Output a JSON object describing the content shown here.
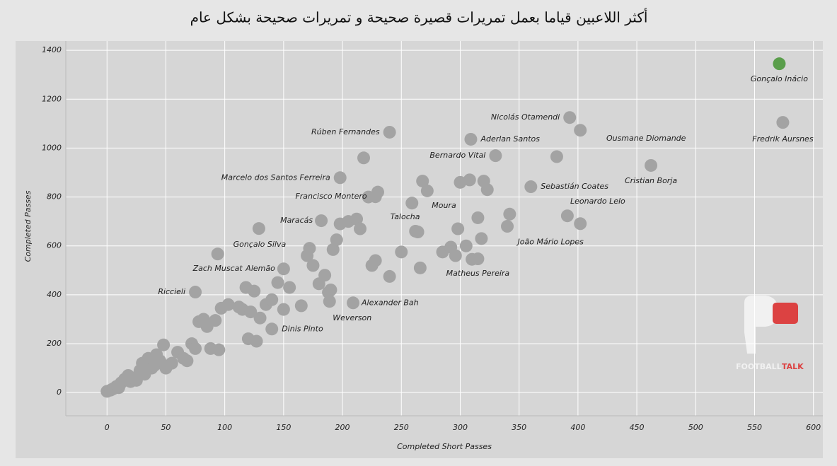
{
  "chart_data": {
    "type": "scatter",
    "title": "أكثر اللاعبين قياما بعمل تمريرات قصيرة صحيحة و تمريرات صحيحة بشكل عام",
    "x_label": "Completed Short Passes",
    "y_label": "Completed Passes",
    "watermark": [
      "FOOTBALL",
      "TALK"
    ],
    "xlim": [
      -35,
      608
    ],
    "ylim": [
      -95,
      1438
    ],
    "xticks": [
      0,
      50,
      100,
      150,
      200,
      250,
      300,
      350,
      400,
      450,
      500,
      550,
      600
    ],
    "yticks": [
      0,
      200,
      400,
      600,
      800,
      1000,
      1200,
      1400
    ],
    "grid": true,
    "series": [
      {
        "color": "#a3a3a3",
        "x": [
          574,
          393,
          402,
          240,
          309,
          330,
          462,
          198,
          360,
          228,
          259,
          391,
          264,
          182,
          402,
          129,
          315,
          94,
          150,
          75,
          209,
          189,
          140,
          0,
          3,
          5,
          8,
          10,
          12,
          15,
          18,
          20,
          22,
          25,
          28,
          30,
          32,
          35,
          38,
          40,
          42,
          45,
          48,
          50,
          55,
          60,
          65,
          68,
          72,
          75,
          78,
          82,
          85,
          88,
          92,
          95,
          97,
          103,
          112,
          115,
          118,
          120,
          122,
          125,
          127,
          130,
          135,
          140,
          145,
          150,
          155,
          165,
          170,
          172,
          175,
          180,
          185,
          188,
          190,
          192,
          195,
          198,
          205,
          212,
          215,
          218,
          222,
          225,
          228,
          230,
          240,
          250,
          262,
          266,
          268,
          272,
          285,
          292,
          296,
          298,
          300,
          305,
          308,
          310,
          315,
          318,
          320,
          323,
          340,
          342,
          382
        ],
        "values": [
          1105,
          1125,
          1073,
          1065,
          1036,
          969,
          929,
          879,
          842,
          801,
          775,
          723,
          657,
          703,
          691,
          671,
          547,
          567,
          506,
          411,
          367,
          373,
          260,
          5,
          10,
          15,
          25,
          20,
          40,
          55,
          70,
          45,
          60,
          50,
          90,
          120,
          75,
          140,
          100,
          110,
          155,
          130,
          195,
          100,
          120,
          165,
          140,
          130,
          200,
          180,
          290,
          300,
          270,
          180,
          295,
          175,
          345,
          360,
          350,
          340,
          430,
          220,
          330,
          415,
          210,
          305,
          360,
          380,
          450,
          340,
          430,
          355,
          560,
          590,
          520,
          445,
          480,
          410,
          420,
          585,
          625,
          690,
          700,
          710,
          670,
          960,
          800,
          520,
          540,
          820,
          475,
          575,
          660,
          510,
          865,
          825,
          575,
          595,
          560,
          670,
          860,
          600,
          870,
          545,
          715,
          630,
          865,
          830,
          680,
          730,
          965
        ],
        "labels": [
          "Fredrik Aursnes",
          "Nicolás Otamendi",
          "Ousmane Diomande",
          "Rúben Fernandes",
          "Aderlan Santos",
          "Bernardo Vital",
          "Cristian Borja",
          "Marcelo dos Santos Ferreira",
          "Sebastián Coates",
          "Francisco Montero",
          "Moura",
          "Leonardo Lelo",
          "Talocha",
          "Maracás",
          "João Mário Lopes",
          "Gonçalo Silva",
          "Matheus Pereira",
          "Zach Muscat",
          "Alemão",
          "Riccieli",
          "Alexander Bah",
          "Weverson",
          "Dinis Pinto",
          null,
          null,
          null,
          null,
          null,
          null,
          null,
          null,
          null,
          null,
          null,
          null,
          null,
          null,
          null,
          null,
          null,
          null,
          null,
          null,
          null,
          null,
          null,
          null,
          null,
          null,
          null,
          null,
          null,
          null,
          null,
          null,
          null,
          null,
          null,
          null,
          null,
          null,
          null,
          null,
          null,
          null,
          null,
          null,
          null,
          null,
          null,
          null,
          null,
          null,
          null,
          null,
          null,
          null,
          null,
          null,
          null,
          null,
          null,
          null,
          null,
          null,
          null,
          null,
          null,
          null,
          null,
          null,
          null,
          null,
          null,
          null,
          null,
          null,
          null,
          null,
          null,
          null,
          null,
          null,
          null,
          null,
          null,
          null,
          null,
          null,
          null
        ]
      },
      {
        "color": "#5a9e4b",
        "x": [
          571
        ],
        "values": [
          1345
        ],
        "labels": [
          "Gonçalo Inácio"
        ]
      }
    ]
  }
}
